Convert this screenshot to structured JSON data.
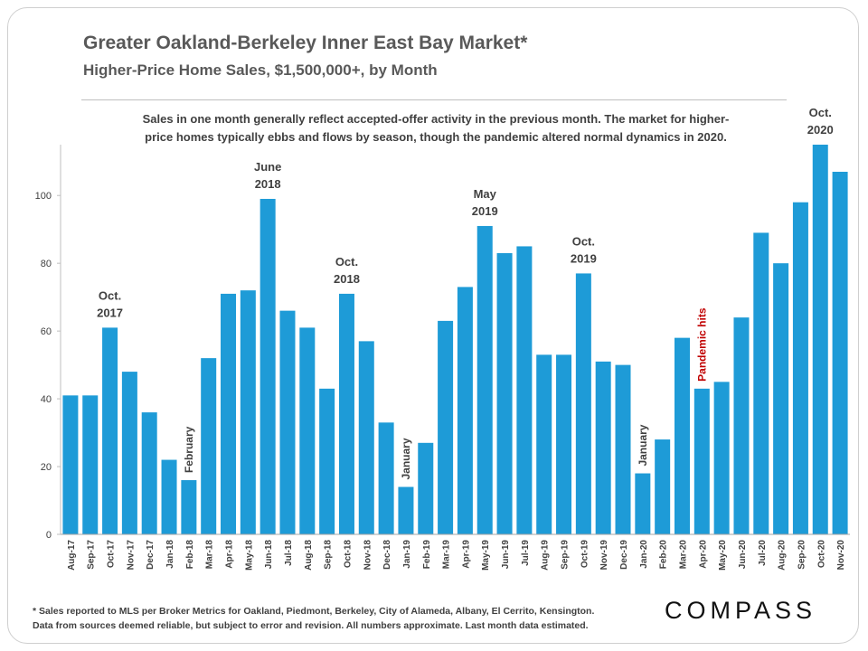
{
  "slide": {
    "title": "Greater Oakland-Berkeley Inner East Bay Market*",
    "subtitle": "Higher-Price  Home Sales, $1,500,000+, by Month",
    "note_line1": "Sales in one month generally reflect accepted-offer activity in the previous month. The market for higher-",
    "note_line2": "price homes typically ebbs and flows by season, though the pandemic altered normal dynamics in 2020.",
    "footnote_line1": "* Sales reported to MLS per Broker Metrics for Oakland, Piedmont, Berkeley, City of Alameda, Albany, El Cerrito, Kensington.",
    "footnote_line2": "Data from sources deemed reliable, but subject to error and revision. All numbers approximate. Last month data estimated.",
    "logo": "COMPASS"
  },
  "chart_data": {
    "type": "bar",
    "title": "Greater Oakland-Berkeley Inner East Bay Market*",
    "subtitle": "Higher-Price  Home Sales, $1,500,000+, by Month",
    "xlabel": "",
    "ylabel": "",
    "ylim": [
      0,
      115
    ],
    "yticks": [
      0,
      20,
      40,
      60,
      80,
      100
    ],
    "grid": false,
    "bar_color": "#1E9BD7",
    "categories": [
      "Aug-17",
      "Sep-17",
      "Oct-17",
      "Nov-17",
      "Dec-17",
      "Jan-18",
      "Feb-18",
      "Mar-18",
      "Apr-18",
      "May-18",
      "Jun-18",
      "Jul-18",
      "Aug-18",
      "Sep-18",
      "Oct-18",
      "Nov-18",
      "Dec-18",
      "Jan-19",
      "Feb-19",
      "Mar-19",
      "Apr-19",
      "May-19",
      "Jun-19",
      "Jul-19",
      "Aug-19",
      "Sep-19",
      "Oct-19",
      "Nov-19",
      "Dec-19",
      "Jan-20",
      "Feb-20",
      "Mar-20",
      "Apr-20",
      "May-20",
      "Jun-20",
      "Jul-20",
      "Aug-20",
      "Sep-20",
      "Oct-20",
      "Nov-20"
    ],
    "values": [
      41,
      41,
      61,
      48,
      36,
      22,
      16,
      52,
      71,
      72,
      99,
      66,
      61,
      43,
      71,
      57,
      33,
      14,
      27,
      63,
      73,
      91,
      83,
      85,
      53,
      53,
      77,
      51,
      50,
      18,
      28,
      58,
      43,
      45,
      64,
      89,
      80,
      98,
      115,
      107
    ],
    "annotations": [
      {
        "index": 2,
        "lines": [
          "Oct.",
          "2017"
        ],
        "style": "above"
      },
      {
        "index": 10,
        "lines": [
          "June",
          "2018"
        ],
        "style": "above"
      },
      {
        "index": 14,
        "lines": [
          "Oct.",
          "2018"
        ],
        "style": "above"
      },
      {
        "index": 21,
        "lines": [
          "May",
          "2019"
        ],
        "style": "above"
      },
      {
        "index": 26,
        "lines": [
          "Oct.",
          "2019"
        ],
        "style": "above"
      },
      {
        "index": 38,
        "lines": [
          "Oct.",
          "2020"
        ],
        "style": "above"
      },
      {
        "index": 6,
        "lines": [
          "February"
        ],
        "style": "vertical",
        "color": "#404040"
      },
      {
        "index": 17,
        "lines": [
          "January"
        ],
        "style": "vertical",
        "color": "#404040"
      },
      {
        "index": 29,
        "lines": [
          "January"
        ],
        "style": "vertical",
        "color": "#404040"
      },
      {
        "index": 32,
        "lines": [
          "Pandemic hits"
        ],
        "style": "vertical",
        "color": "#C00000"
      }
    ]
  }
}
